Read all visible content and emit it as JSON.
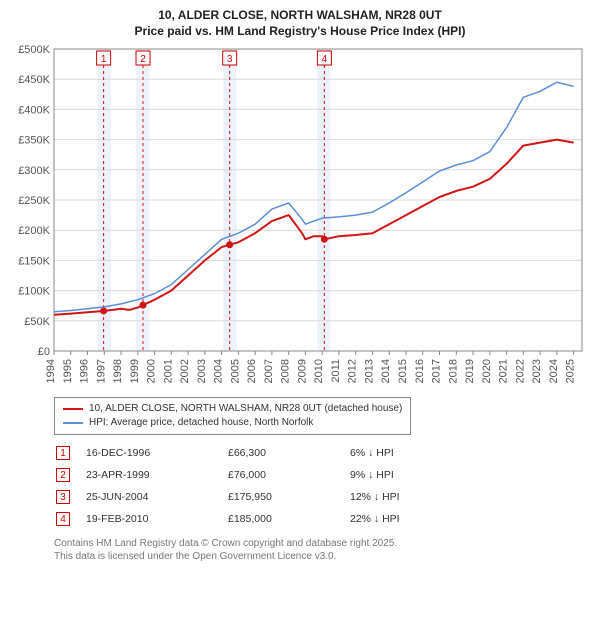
{
  "title_line1": "10, ALDER CLOSE, NORTH WALSHAM, NR28 0UT",
  "title_line2": "Price paid vs. HM Land Registry's House Price Index (HPI)",
  "chart": {
    "type": "line",
    "background_color": "#ffffff",
    "grid_color": "#d9d9d9",
    "band_fill": "#eef2fa",
    "x_years": [
      1994,
      1995,
      1996,
      1997,
      1998,
      1999,
      2000,
      2001,
      2002,
      2003,
      2004,
      2005,
      2006,
      2007,
      2008,
      2009,
      2010,
      2011,
      2012,
      2013,
      2014,
      2015,
      2016,
      2017,
      2018,
      2019,
      2020,
      2021,
      2022,
      2023,
      2024,
      2025
    ],
    "x_min": 1994,
    "x_max": 2025.5,
    "y_min": 0,
    "y_max": 500000,
    "y_ticks": [
      0,
      50000,
      100000,
      150000,
      200000,
      250000,
      300000,
      350000,
      400000,
      450000,
      500000
    ],
    "y_tick_labels": [
      "£0",
      "£50K",
      "£100K",
      "£150K",
      "£200K",
      "£250K",
      "£300K",
      "£350K",
      "£400K",
      "£450K",
      "£500K"
    ],
    "series": [
      {
        "name": "10, ALDER CLOSE, NORTH WALSHAM, NR28 0UT (detached house)",
        "color": "#d01515",
        "width": 2,
        "points": [
          [
            1994,
            60000
          ],
          [
            1995,
            62000
          ],
          [
            1996,
            64000
          ],
          [
            1996.96,
            66300
          ],
          [
            1997.5,
            68000
          ],
          [
            1998,
            70000
          ],
          [
            1998.5,
            68000
          ],
          [
            1999,
            72000
          ],
          [
            1999.31,
            76000
          ],
          [
            2000,
            85000
          ],
          [
            2001,
            100000
          ],
          [
            2002,
            125000
          ],
          [
            2003,
            150000
          ],
          [
            2004,
            172000
          ],
          [
            2004.48,
            175950
          ],
          [
            2005,
            180000
          ],
          [
            2006,
            195000
          ],
          [
            2007,
            215000
          ],
          [
            2008,
            225000
          ],
          [
            2008.8,
            195000
          ],
          [
            2009,
            185000
          ],
          [
            2009.5,
            190000
          ],
          [
            2010,
            190000
          ],
          [
            2010.13,
            185000
          ],
          [
            2011,
            190000
          ],
          [
            2012,
            192000
          ],
          [
            2013,
            195000
          ],
          [
            2014,
            210000
          ],
          [
            2015,
            225000
          ],
          [
            2016,
            240000
          ],
          [
            2017,
            255000
          ],
          [
            2018,
            265000
          ],
          [
            2019,
            272000
          ],
          [
            2020,
            285000
          ],
          [
            2021,
            310000
          ],
          [
            2022,
            340000
          ],
          [
            2023,
            345000
          ],
          [
            2024,
            350000
          ],
          [
            2025,
            345000
          ]
        ]
      },
      {
        "name": "HPI: Average price, detached house, North Norfolk",
        "color": "#5b8fd6",
        "width": 1.5,
        "points": [
          [
            1994,
            65000
          ],
          [
            1995,
            67000
          ],
          [
            1996,
            70000
          ],
          [
            1997,
            73000
          ],
          [
            1998,
            78000
          ],
          [
            1999,
            85000
          ],
          [
            2000,
            95000
          ],
          [
            2001,
            110000
          ],
          [
            2002,
            135000
          ],
          [
            2003,
            160000
          ],
          [
            2004,
            185000
          ],
          [
            2005,
            195000
          ],
          [
            2006,
            210000
          ],
          [
            2007,
            235000
          ],
          [
            2008,
            245000
          ],
          [
            2008.8,
            218000
          ],
          [
            2009,
            210000
          ],
          [
            2010,
            220000
          ],
          [
            2011,
            222000
          ],
          [
            2012,
            225000
          ],
          [
            2013,
            230000
          ],
          [
            2014,
            245000
          ],
          [
            2015,
            262000
          ],
          [
            2016,
            280000
          ],
          [
            2017,
            298000
          ],
          [
            2018,
            308000
          ],
          [
            2019,
            315000
          ],
          [
            2020,
            330000
          ],
          [
            2021,
            370000
          ],
          [
            2022,
            420000
          ],
          [
            2023,
            430000
          ],
          [
            2024,
            445000
          ],
          [
            2025,
            438000
          ]
        ]
      }
    ],
    "markers": [
      {
        "num": "1",
        "year": 1996.96,
        "band_start": 1996.6,
        "band_end": 1997.4
      },
      {
        "num": "2",
        "year": 1999.31,
        "band_start": 1998.9,
        "band_end": 1999.7
      },
      {
        "num": "3",
        "year": 2004.48,
        "band_start": 2004.1,
        "band_end": 2004.9
      },
      {
        "num": "4",
        "year": 2010.13,
        "band_start": 2009.7,
        "band_end": 2010.5
      }
    ],
    "marker_dash": "3,3",
    "marker_line_color": "#d01515"
  },
  "legend": {
    "items": [
      {
        "color": "#d01515",
        "label": "10, ALDER CLOSE, NORTH WALSHAM, NR28 0UT (detached house)"
      },
      {
        "color": "#5b8fd6",
        "label": "HPI: Average price, detached house, North Norfolk"
      }
    ]
  },
  "events": [
    {
      "num": "1",
      "date": "16-DEC-1996",
      "price": "£66,300",
      "diff": "6% ↓ HPI"
    },
    {
      "num": "2",
      "date": "23-APR-1999",
      "price": "£76,000",
      "diff": "9% ↓ HPI"
    },
    {
      "num": "3",
      "date": "25-JUN-2004",
      "price": "£175,950",
      "diff": "12% ↓ HPI"
    },
    {
      "num": "4",
      "date": "19-FEB-2010",
      "price": "£185,000",
      "diff": "22% ↓ HPI"
    }
  ],
  "footer": {
    "line1": "Contains HM Land Registry data © Crown copyright and database right 2025.",
    "line2": "This data is licensed under the Open Government Licence v3.0."
  }
}
